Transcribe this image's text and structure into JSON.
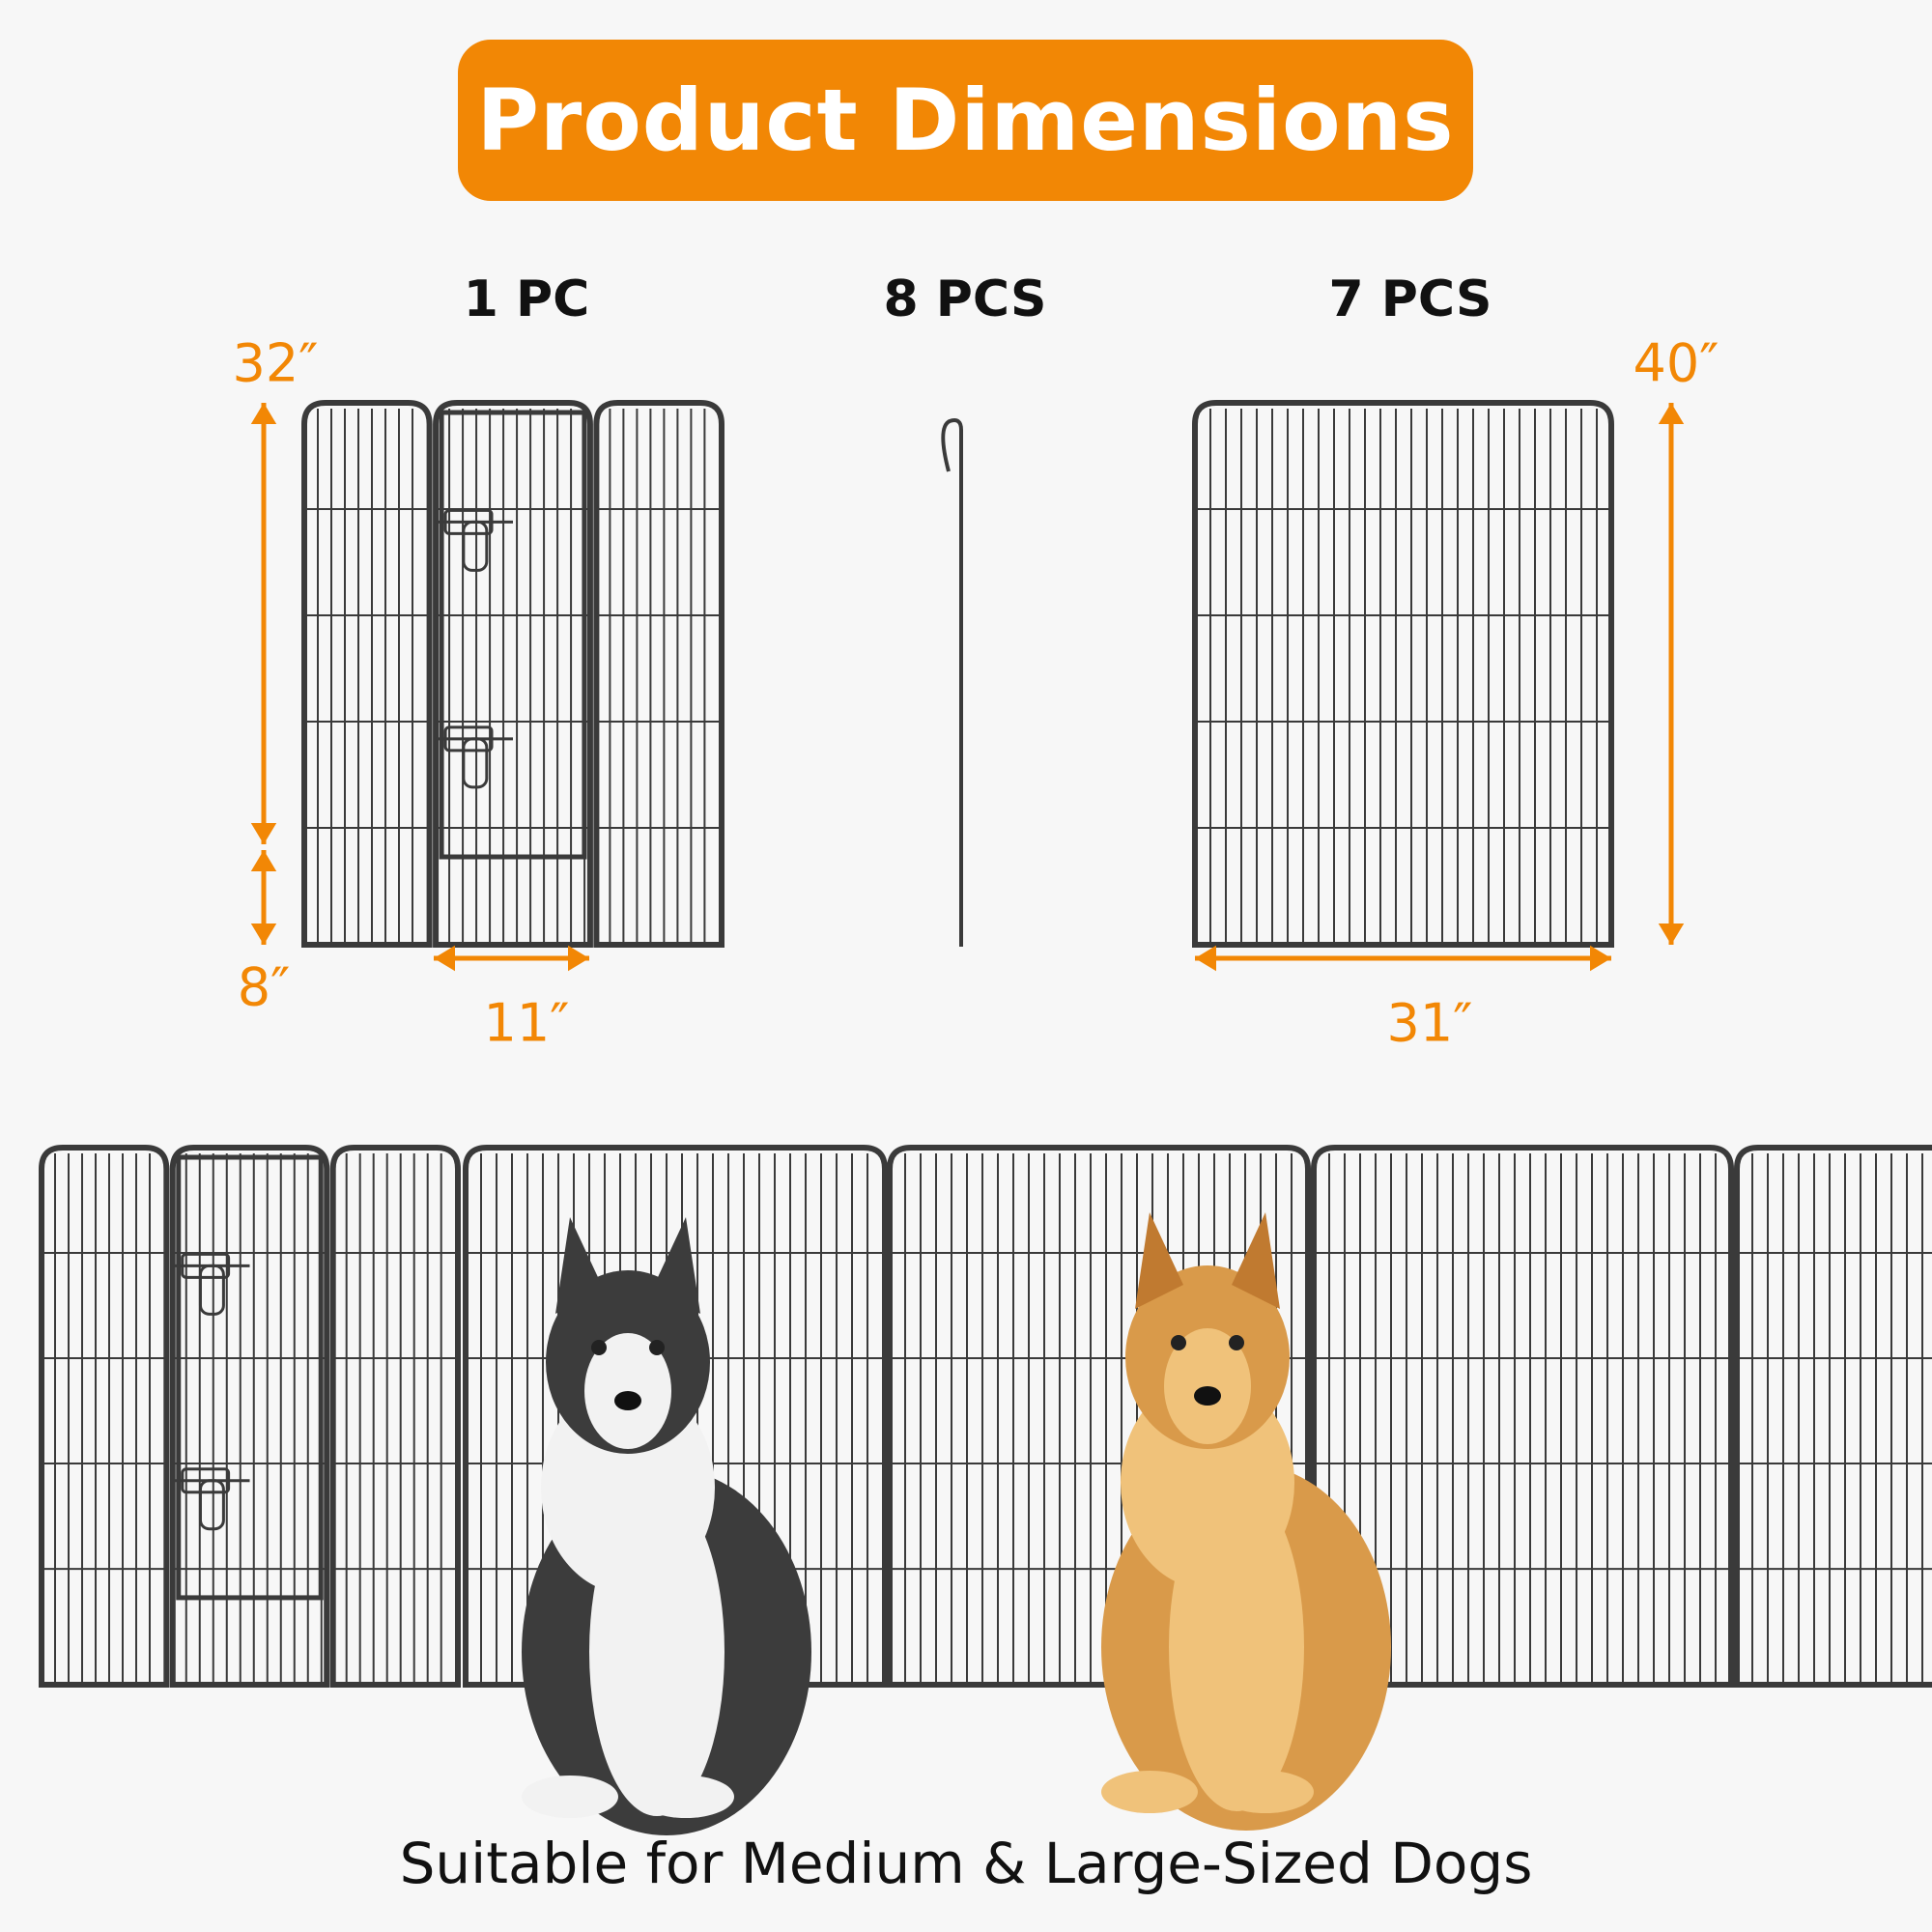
{
  "title": "Product Dimensions",
  "components": [
    {
      "quantity": "1 PC"
    },
    {
      "quantity": "8 PCS"
    },
    {
      "quantity": "7 PCS"
    }
  ],
  "dimensions": {
    "door_panel_height": "32″",
    "door_bottom_gap": "8″",
    "door_width": "11″",
    "panel_height": "40″",
    "panel_width": "31″"
  },
  "caption": "Suitable for Medium & Large-Sized Dogs",
  "colors": {
    "accent": "#f28705",
    "fence": "#3a3a3a",
    "background": "#f7f7f7"
  }
}
